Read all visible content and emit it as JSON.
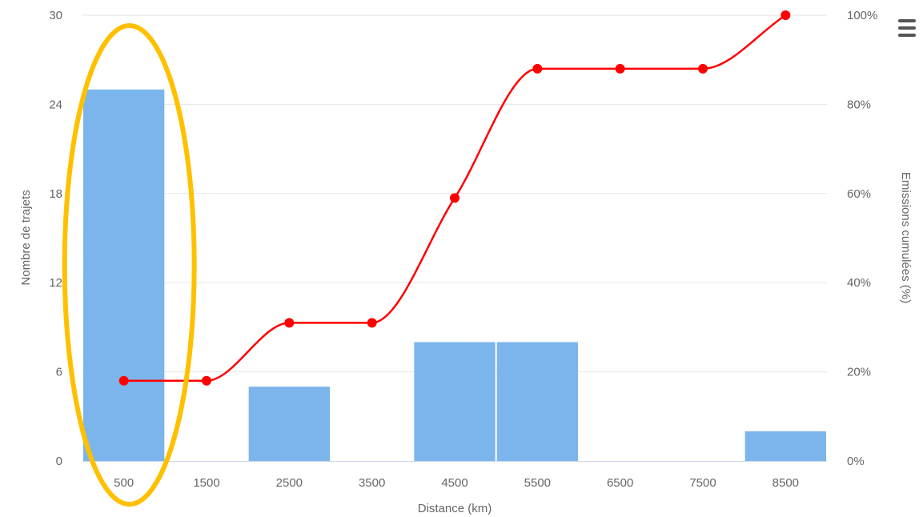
{
  "chart_data": {
    "type": "bar",
    "categories": [
      "500",
      "1500",
      "2500",
      "3500",
      "4500",
      "5500",
      "6500",
      "7500",
      "8500"
    ],
    "series": [
      {
        "type": "bar",
        "axis": "left",
        "values": [
          25,
          0,
          5,
          0,
          8,
          8,
          0,
          0,
          2
        ],
        "color": "#7cb5ec"
      },
      {
        "type": "line",
        "smooth": true,
        "axis": "right",
        "values": [
          18,
          18,
          31,
          31,
          59,
          88,
          88,
          88,
          100
        ],
        "color": "#ff0000"
      }
    ],
    "xlabel": "Distance (km)",
    "ylabel": "Nombre de trajets",
    "y2label": "Emissions cumulées (%)",
    "ylim": [
      0,
      30
    ],
    "y2lim": [
      0,
      100
    ],
    "yticks": [
      "0",
      "6",
      "12",
      "18",
      "24",
      "30"
    ],
    "y2ticks": [
      "0%",
      "20%",
      "40%",
      "60%",
      "80%",
      "100%"
    ],
    "grid": true,
    "highlight": {
      "category": "500",
      "shape": "ellipse",
      "color": "#ffc000"
    }
  },
  "menu": {
    "icon": "hamburger-menu-icon"
  }
}
